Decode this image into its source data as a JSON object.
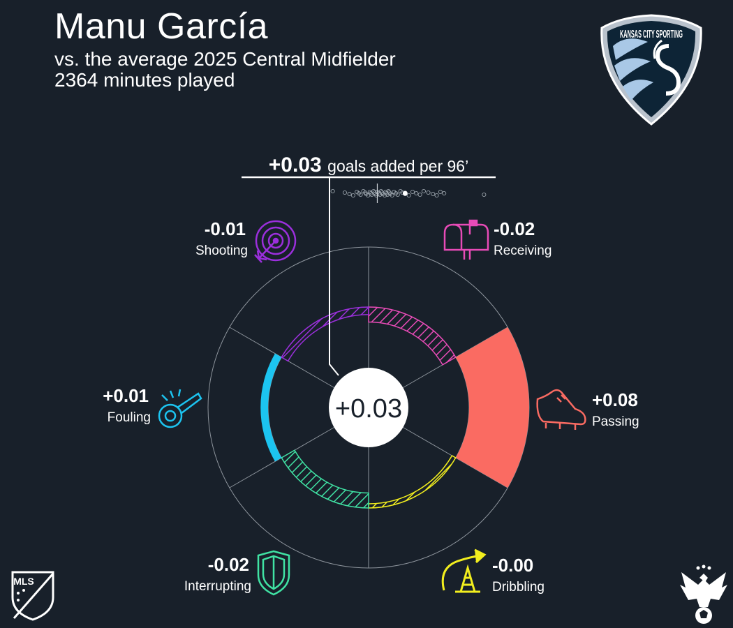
{
  "header": {
    "player_name": "Manu García",
    "comparison": "vs. the average 2025 Central Midfielder",
    "minutes": "2364 minutes played"
  },
  "badges": {
    "team_logo": "sporting-kansas-city-crest",
    "team_logo_text": "KANSAS CITY SPORTING",
    "league_logo": "mls-logo",
    "league_logo_text": "MLS",
    "brand_logo": "eagle-soccer-ball-logo"
  },
  "colors": {
    "background": "#18202a",
    "shooting": "#9b2fdc",
    "receiving": "#e84bb7",
    "passing": "#fa6b62",
    "dribbling": "#f2ee1e",
    "interrupting": "#40e3a4",
    "fouling": "#1cc4f0"
  },
  "chart_data": {
    "type": "radial-bar",
    "title": "+0.03 goals added per 96’",
    "title_value": "+0.03",
    "title_suffix": "goals added per 96’",
    "total": 0.03,
    "center_label": "+0.03",
    "max_abs_value": 0.08,
    "grid": true,
    "distribution": {
      "description": "other central midfielders' goals added per 96",
      "xlim": [
        -0.05,
        0.12
      ],
      "average": 0.0,
      "player_value": 0.03,
      "others": [
        -0.048,
        -0.035,
        -0.03,
        -0.026,
        -0.022,
        -0.02,
        -0.018,
        -0.015,
        -0.013,
        -0.012,
        -0.01,
        -0.008,
        -0.007,
        -0.006,
        -0.004,
        -0.003,
        -0.002,
        -0.001,
        0.0,
        0.002,
        0.003,
        0.004,
        0.005,
        0.006,
        0.008,
        0.009,
        0.01,
        0.011,
        0.012,
        0.013,
        0.014,
        0.016,
        0.018,
        0.02,
        0.022,
        0.025,
        0.027,
        0.03,
        0.034,
        0.038,
        0.042,
        0.046,
        0.05,
        0.055,
        0.06,
        0.064,
        0.068,
        0.072,
        0.115
      ]
    },
    "categories": [
      {
        "key": "receiving",
        "label": "Receiving",
        "value": -0.02,
        "value_label": "-0.02",
        "icon": "mailbox-icon"
      },
      {
        "key": "passing",
        "label": "Passing",
        "value": 0.08,
        "value_label": "+0.08",
        "icon": "cleat-icon"
      },
      {
        "key": "dribbling",
        "label": "Dribbling",
        "value": -0.004,
        "value_label": "-0.00",
        "icon": "cone-arrow-icon"
      },
      {
        "key": "interrupting",
        "label": "Interrupting",
        "value": -0.02,
        "value_label": "-0.02",
        "icon": "shield-icon"
      },
      {
        "key": "fouling",
        "label": "Fouling",
        "value": 0.01,
        "value_label": "+0.01",
        "icon": "whistle-icon"
      },
      {
        "key": "shooting",
        "label": "Shooting",
        "value": -0.01,
        "value_label": "-0.01",
        "icon": "target-icon"
      }
    ]
  }
}
